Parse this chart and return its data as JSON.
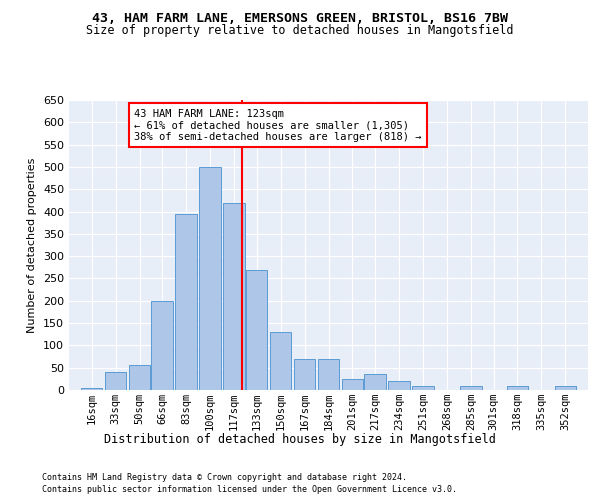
{
  "title_line1": "43, HAM FARM LANE, EMERSONS GREEN, BRISTOL, BS16 7BW",
  "title_line2": "Size of property relative to detached houses in Mangotsfield",
  "xlabel": "Distribution of detached houses by size in Mangotsfield",
  "ylabel": "Number of detached properties",
  "footnote1": "Contains HM Land Registry data © Crown copyright and database right 2024.",
  "footnote2": "Contains public sector information licensed under the Open Government Licence v3.0.",
  "bar_labels": [
    "16sqm",
    "33sqm",
    "50sqm",
    "66sqm",
    "83sqm",
    "100sqm",
    "117sqm",
    "133sqm",
    "150sqm",
    "167sqm",
    "184sqm",
    "201sqm",
    "217sqm",
    "234sqm",
    "251sqm",
    "268sqm",
    "285sqm",
    "301sqm",
    "318sqm",
    "335sqm",
    "352sqm"
  ],
  "bar_values": [
    5,
    40,
    55,
    200,
    395,
    500,
    420,
    270,
    130,
    70,
    70,
    25,
    35,
    20,
    10,
    0,
    10,
    0,
    10,
    0,
    10
  ],
  "x_positions": [
    16,
    33,
    50,
    66,
    83,
    100,
    117,
    133,
    150,
    167,
    184,
    201,
    217,
    234,
    251,
    268,
    285,
    301,
    318,
    335,
    352
  ],
  "bar_color": "#aec6e8",
  "bar_edge_color": "#5b9bd5",
  "vline_x": 123,
  "vline_color": "red",
  "annotation_text": "43 HAM FARM LANE: 123sqm\n← 61% of detached houses are smaller (1,305)\n38% of semi-detached houses are larger (818) →",
  "ylim": [
    0,
    650
  ],
  "yticks": [
    0,
    50,
    100,
    150,
    200,
    250,
    300,
    350,
    400,
    450,
    500,
    550,
    600,
    650
  ],
  "background_color": "#e8eef8",
  "grid_color": "#ffffff",
  "bin_width": 16
}
